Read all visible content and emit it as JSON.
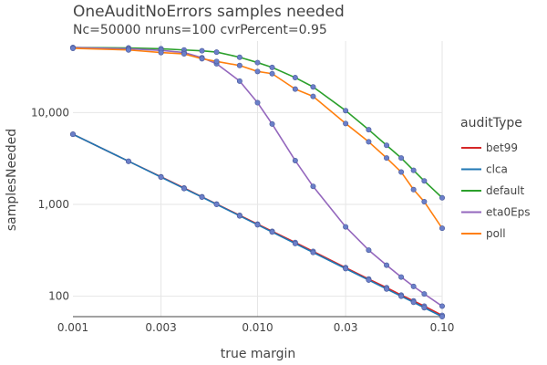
{
  "chart_data": {
    "type": "line",
    "title": "OneAuditNoErrors samples needed",
    "subtitle": "Nc=50000 nruns=100 cvrPercent=0.95",
    "xlabel": "true margin",
    "ylabel": "samplesNeeded",
    "x_scale": "log",
    "y_scale": "log",
    "xlim": [
      0.001,
      0.1
    ],
    "ylim": [
      60,
      60000
    ],
    "x_ticks": [
      {
        "value": 0.001,
        "label": "0.001"
      },
      {
        "value": 0.003,
        "label": "0.003"
      },
      {
        "value": 0.01,
        "label": "0.010"
      },
      {
        "value": 0.03,
        "label": "0.03"
      },
      {
        "value": 0.1,
        "label": "0.10"
      }
    ],
    "y_ticks": [
      {
        "value": 100,
        "label": "100"
      },
      {
        "value": 1000,
        "label": "1,000"
      },
      {
        "value": 10000,
        "label": "10,000"
      }
    ],
    "grid": true,
    "legend_title": "auditType",
    "legend_position": "right",
    "marker_color": "#6b7fc9",
    "x": [
      0.001,
      0.002,
      0.003,
      0.004,
      0.005,
      0.006,
      0.008,
      0.01,
      0.012,
      0.016,
      0.02,
      0.03,
      0.04,
      0.05,
      0.06,
      0.07,
      0.08,
      0.1
    ],
    "series": [
      {
        "name": "bet99",
        "color": "#d62728",
        "values": [
          5800,
          2950,
          2000,
          1510,
          1210,
          1010,
          760,
          610,
          510,
          385,
          308,
          205,
          154,
          124,
          103,
          89,
          78,
          62
        ]
      },
      {
        "name": "clca",
        "color": "#1f77b4",
        "values": [
          5800,
          2950,
          1980,
          1490,
          1200,
          1000,
          750,
          600,
          500,
          375,
          300,
          200,
          150,
          120,
          100,
          86,
          75,
          60
        ]
      },
      {
        "name": "default",
        "color": "#2ca02c",
        "values": [
          51000,
          50500,
          49500,
          48000,
          47000,
          45500,
          40000,
          35000,
          31000,
          24000,
          19000,
          10500,
          6500,
          4400,
          3200,
          2350,
          1800,
          1180
        ]
      },
      {
        "name": "eta0Eps",
        "color": "#9467bd",
        "values": [
          51000,
          49500,
          47500,
          45000,
          39500,
          34000,
          22000,
          12800,
          7500,
          3000,
          1570,
          570,
          318,
          218,
          162,
          128,
          106,
          78
        ]
      },
      {
        "name": "poll",
        "color": "#ff7f0e",
        "values": [
          50000,
          48000,
          45000,
          43500,
          38500,
          36000,
          32500,
          28000,
          26500,
          18000,
          15000,
          7600,
          4800,
          3200,
          2250,
          1450,
          1070,
          550
        ]
      }
    ]
  }
}
